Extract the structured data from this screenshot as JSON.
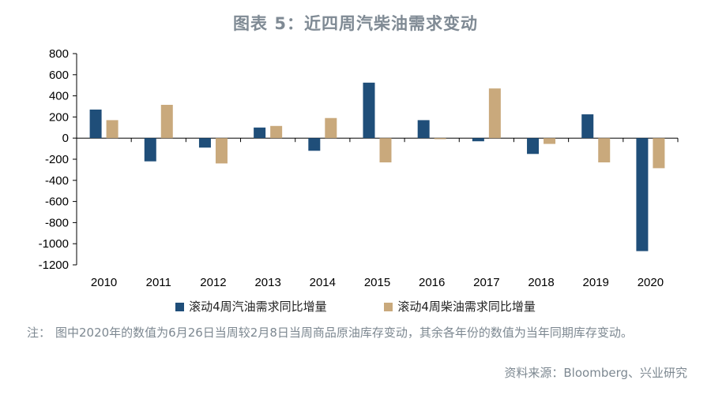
{
  "title": "图表 5：近四周汽柴油需求变动",
  "note_prefix": "注：",
  "note_text": "图中2020年的数值为6月26日当周较2月8日当周商品原油库存变动，其余各年份的数值为当年同期库存变动。",
  "source": "资料来源：Bloomberg、兴业研究",
  "colors": {
    "gasoline": "#1f4e79",
    "diesel": "#c9a97c",
    "title": "#7f8a94",
    "note": "#7d8891"
  },
  "chart_data": {
    "type": "bar",
    "categories": [
      "2010",
      "2011",
      "2012",
      "2013",
      "2014",
      "2015",
      "2016",
      "2017",
      "2018",
      "2019",
      "2020"
    ],
    "series": [
      {
        "name": "滚动4周汽油需求同比增量",
        "values": [
          270,
          -220,
          -90,
          100,
          -120,
          525,
          170,
          -30,
          -150,
          225,
          -1070
        ]
      },
      {
        "name": "滚动4周柴油需求同比增量",
        "values": [
          170,
          315,
          -240,
          115,
          190,
          -230,
          -10,
          470,
          -55,
          -230,
          -285
        ]
      }
    ],
    "ylim": [
      -1200,
      800
    ],
    "yticks": [
      800,
      600,
      400,
      200,
      0,
      -200,
      -400,
      -600,
      -800,
      -1000,
      -1200
    ],
    "ytick_labels": [
      "800",
      "600",
      "400",
      "200",
      "0",
      "-200",
      "-400",
      "-600",
      "-800",
      "-1000",
      "-1200"
    ],
    "legend": "bottom",
    "grid": false
  }
}
